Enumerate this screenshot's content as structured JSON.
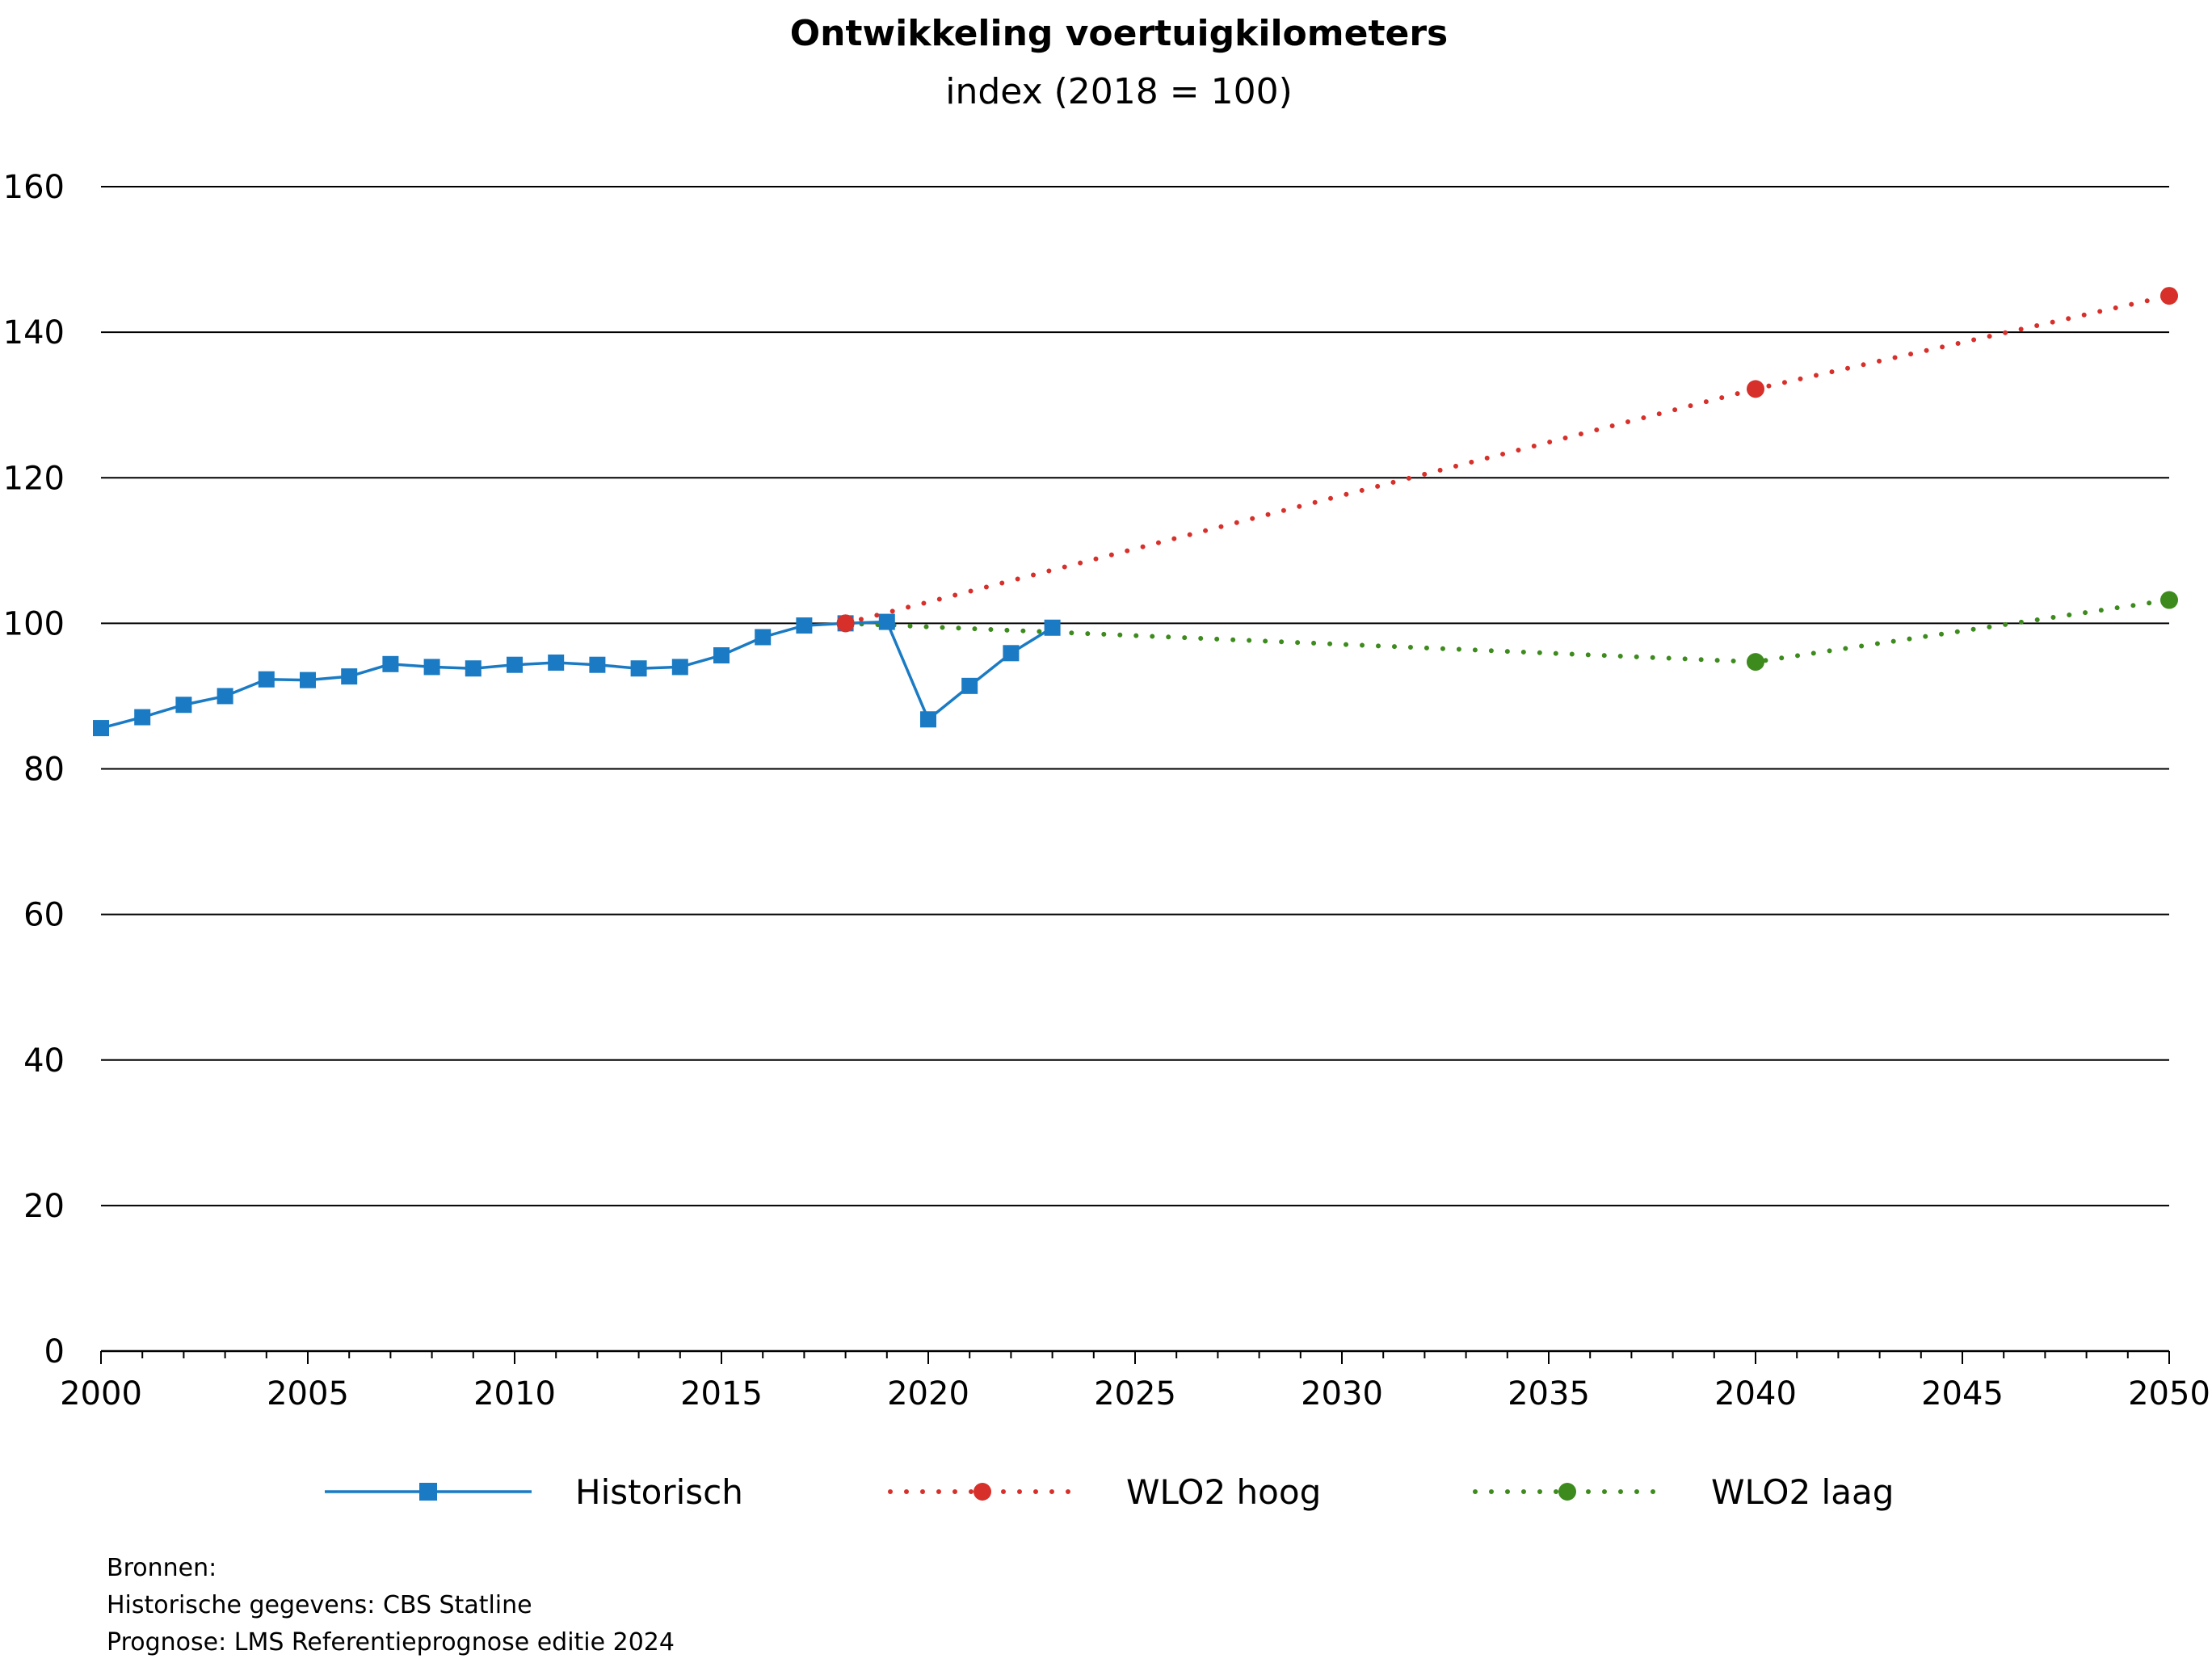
{
  "chart_data": {
    "type": "line",
    "title": "Ontwikkeling voertuigkilometers",
    "subtitle": "index (2018 = 100)",
    "xlabel": "",
    "ylabel": "",
    "xlim": [
      2000,
      2050
    ],
    "ylim": [
      0,
      160
    ],
    "x_ticks": [
      2000,
      2005,
      2010,
      2015,
      2020,
      2025,
      2030,
      2035,
      2040,
      2045,
      2050
    ],
    "y_ticks": [
      0,
      20,
      40,
      60,
      80,
      100,
      120,
      140,
      160
    ],
    "grid": "horizontal",
    "legend_position": "bottom",
    "series": [
      {
        "name": "Historisch",
        "style": "solid",
        "marker": "square",
        "color": "#1a7bc4",
        "x": [
          2000,
          2001,
          2002,
          2003,
          2004,
          2005,
          2006,
          2007,
          2008,
          2009,
          2010,
          2011,
          2012,
          2013,
          2014,
          2015,
          2016,
          2017,
          2018,
          2019,
          2020,
          2021,
          2022,
          2023
        ],
        "y": [
          85.6,
          87.1,
          88.8,
          90.0,
          92.3,
          92.2,
          92.7,
          94.4,
          94.0,
          93.8,
          94.3,
          94.6,
          94.3,
          93.8,
          94.0,
          95.6,
          98.1,
          99.7,
          100.0,
          100.2,
          86.8,
          91.4,
          95.9,
          99.4
        ]
      },
      {
        "name": "WLO2 hoog",
        "style": "dotted",
        "marker": "circle",
        "color": "#d7302a",
        "x": [
          2018,
          2040,
          2050
        ],
        "y": [
          100.0,
          132.2,
          145.0
        ],
        "marker_x": [
          2018,
          2040,
          2050
        ]
      },
      {
        "name": "WLO2 laag",
        "style": "dotted",
        "marker": "circle",
        "color": "#3d8b1d",
        "x": [
          2018,
          2040,
          2050
        ],
        "y": [
          100.0,
          94.7,
          103.2
        ],
        "marker_x": [
          2040,
          2050
        ]
      }
    ]
  },
  "sources": {
    "heading": "Bronnen:",
    "line1": "Historische gegevens: CBS Statline",
    "line2": "Prognose: LMS Referentieprognose editie 2024"
  }
}
